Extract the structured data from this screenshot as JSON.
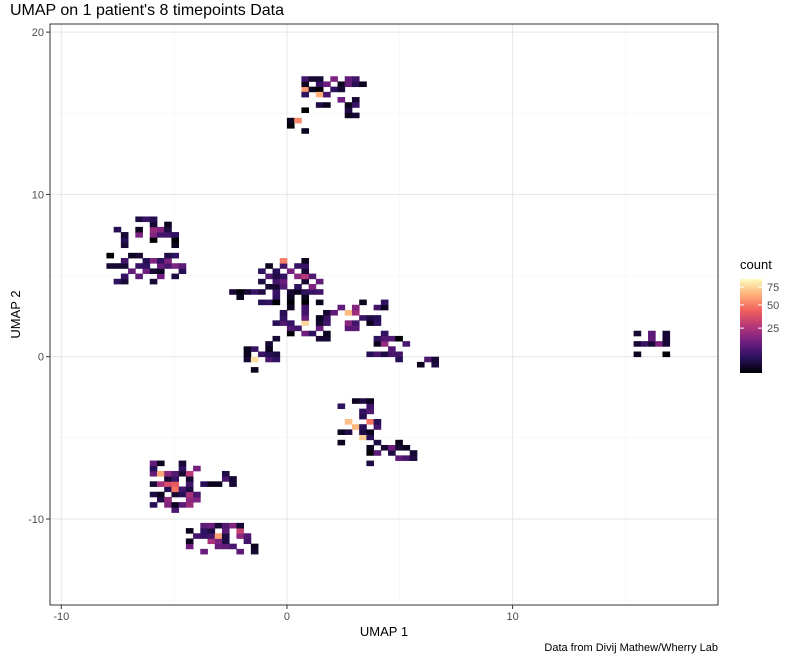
{
  "chart_data": {
    "type": "heatmap",
    "title": "UMAP on 1 patient's 8 timepoints Data",
    "caption": "Data from Divij Mathew/Wherry Lab",
    "xlabel": "UMAP 1",
    "ylabel": "UMAP 2",
    "xlim": [
      -10.5,
      19.1
    ],
    "ylim": [
      -15.3,
      20.5
    ],
    "x_ticks": [
      -10,
      0,
      10
    ],
    "y_ticks": [
      -10,
      0,
      10,
      20
    ],
    "grid": true,
    "bin_size": 0.32,
    "legend": {
      "title": "count",
      "position": "right",
      "breaks": [
        25,
        50,
        75
      ],
      "range": [
        1,
        88
      ],
      "scale": "sqrt",
      "colors": [
        "#000004",
        "#2c115f",
        "#721f81",
        "#b73779",
        "#f1605d",
        "#feb078",
        "#fcfdbf"
      ]
    },
    "clusters": [
      {
        "x": [
          0.3,
          3.6
        ],
        "y": [
          16.5,
          17.2
        ],
        "density": 0.75,
        "intensity": 0.45
      },
      {
        "x": [
          0.6,
          3.1
        ],
        "y": [
          15.3,
          16.5
        ],
        "density": 0.5,
        "intensity": 0.4
      },
      {
        "x": [
          2.5,
          3.5
        ],
        "y": [
          14.8,
          15.4
        ],
        "density": 0.7,
        "intensity": 0.4
      },
      {
        "x": [
          0.2,
          0.9
        ],
        "y": [
          13.8,
          14.6
        ],
        "density": 0.8,
        "intensity": 0.4
      },
      {
        "x": [
          -7.6,
          -5.0
        ],
        "y": [
          6.9,
          8.5
        ],
        "density": 0.55,
        "intensity": 0.45
      },
      {
        "x": [
          -7.9,
          -4.6
        ],
        "y": [
          4.6,
          6.1
        ],
        "density": 0.65,
        "intensity": 0.55
      },
      {
        "x": [
          -2.5,
          -1.5
        ],
        "y": [
          3.6,
          4.0
        ],
        "density": 0.8,
        "intensity": 0.35
      },
      {
        "x": [
          -1.1,
          1.6
        ],
        "y": [
          3.2,
          6.0
        ],
        "density": 0.6,
        "intensity": 0.5
      },
      {
        "x": [
          -0.6,
          1.8
        ],
        "y": [
          0.9,
          3.2
        ],
        "density": 0.55,
        "intensity": 0.45
      },
      {
        "x": [
          -2.0,
          -0.4
        ],
        "y": [
          -0.7,
          1.2
        ],
        "density": 0.5,
        "intensity": 0.4
      },
      {
        "x": [
          1.4,
          4.3
        ],
        "y": [
          1.5,
          3.4
        ],
        "density": 0.65,
        "intensity": 0.5
      },
      {
        "x": [
          3.4,
          5.3
        ],
        "y": [
          -0.3,
          1.2
        ],
        "density": 0.6,
        "intensity": 0.45
      },
      {
        "x": [
          5.6,
          6.5
        ],
        "y": [
          -0.8,
          0.0
        ],
        "density": 0.7,
        "intensity": 0.4
      },
      {
        "x": [
          15.6,
          16.8
        ],
        "y": [
          0.3,
          1.5
        ],
        "density": 0.75,
        "intensity": 0.45
      },
      {
        "x": [
          2.5,
          4.1
        ],
        "y": [
          -5.3,
          -2.8
        ],
        "density": 0.65,
        "intensity": 0.45
      },
      {
        "x": [
          3.6,
          5.7
        ],
        "y": [
          -6.6,
          -5.2
        ],
        "density": 0.7,
        "intensity": 0.45
      },
      {
        "x": [
          -5.9,
          -3.9
        ],
        "y": [
          -9.6,
          -6.6
        ],
        "density": 0.85,
        "intensity": 0.7
      },
      {
        "x": [
          -3.6,
          -2.5
        ],
        "y": [
          -7.9,
          -7.1
        ],
        "density": 0.7,
        "intensity": 0.45
      },
      {
        "x": [
          -4.3,
          -1.6
        ],
        "y": [
          -12.0,
          -10.4
        ],
        "density": 0.9,
        "intensity": 0.75
      }
    ]
  }
}
